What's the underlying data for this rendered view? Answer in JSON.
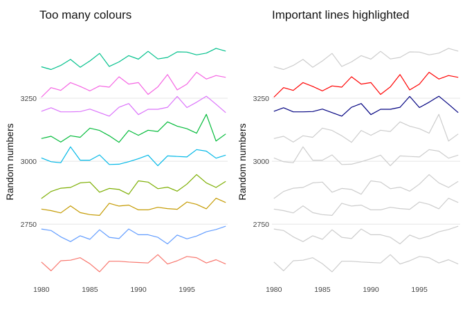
{
  "chart_data": [
    {
      "type": "line",
      "title": "Too many colours",
      "xlabel": "",
      "ylabel": "Random numbers",
      "x": [
        1980,
        1981,
        1982,
        1983,
        1984,
        1985,
        1986,
        1987,
        1988,
        1989,
        1990,
        1991,
        1992,
        1993,
        1994,
        1995,
        1996,
        1997,
        1998,
        1999
      ],
      "x_ticks": [
        1980,
        1985,
        1990,
        1995
      ],
      "y_ticks": [
        2750,
        3000,
        3250
      ],
      "xlim": [
        1979.8,
        1999.2
      ],
      "ylim": [
        2550,
        3530
      ],
      "grid": true,
      "legend": "none",
      "series": [
        {
          "color": "#F8766D",
          "values": [
            2600,
            2565,
            2605,
            2607,
            2617,
            2593,
            2561,
            2603,
            2603,
            2600,
            2598,
            2596,
            2629,
            2592,
            2605,
            2622,
            2617,
            2596,
            2609,
            2592
          ]
        },
        {
          "color": "#619CFF",
          "values": [
            2731,
            2725,
            2700,
            2681,
            2704,
            2690,
            2728,
            2698,
            2693,
            2731,
            2708,
            2708,
            2698,
            2672,
            2707,
            2692,
            2703,
            2720,
            2729,
            2742
          ]
        },
        {
          "color": "#C49A00",
          "values": [
            2810,
            2804,
            2795,
            2823,
            2796,
            2788,
            2785,
            2833,
            2822,
            2826,
            2807,
            2807,
            2817,
            2812,
            2809,
            2838,
            2829,
            2811,
            2853,
            2836
          ]
        },
        {
          "color": "#7CAE00",
          "values": [
            2852,
            2880,
            2893,
            2896,
            2914,
            2917,
            2877,
            2892,
            2888,
            2869,
            2922,
            2917,
            2891,
            2897,
            2881,
            2909,
            2947,
            2914,
            2896,
            2920
          ]
        },
        {
          "color": "#00B8E7",
          "values": [
            3013,
            2998,
            2994,
            3057,
            3004,
            3004,
            3025,
            2987,
            2988,
            2998,
            3010,
            3024,
            2982,
            3021,
            3019,
            3017,
            3046,
            3040,
            3012,
            3024
          ]
        },
        {
          "color": "#00BA38",
          "values": [
            3090,
            3099,
            3076,
            3101,
            3095,
            3131,
            3122,
            3101,
            3075,
            3122,
            3103,
            3123,
            3118,
            3156,
            3139,
            3129,
            3111,
            3186,
            3080,
            3108
          ]
        },
        {
          "color": "#DB72FB",
          "values": [
            3198,
            3212,
            3196,
            3196,
            3197,
            3207,
            3193,
            3179,
            3214,
            3229,
            3185,
            3206,
            3206,
            3214,
            3257,
            3213,
            3234,
            3258,
            3226,
            3193
          ]
        },
        {
          "color": "#F564E3",
          "values": [
            3254,
            3292,
            3281,
            3312,
            3297,
            3279,
            3299,
            3294,
            3335,
            3306,
            3312,
            3265,
            3295,
            3344,
            3283,
            3306,
            3353,
            3326,
            3340,
            3333
          ]
        },
        {
          "color": "#00C08B",
          "values": [
            3375,
            3364,
            3380,
            3404,
            3373,
            3398,
            3428,
            3376,
            3394,
            3419,
            3405,
            3436,
            3406,
            3412,
            3434,
            3433,
            3422,
            3429,
            3448,
            3437
          ]
        }
      ]
    },
    {
      "type": "line",
      "title": "Important lines highlighted",
      "xlabel": "",
      "ylabel": "Random numbers",
      "x": [
        1980,
        1981,
        1982,
        1983,
        1984,
        1985,
        1986,
        1987,
        1988,
        1989,
        1990,
        1991,
        1992,
        1993,
        1994,
        1995,
        1996,
        1997,
        1998,
        1999
      ],
      "x_ticks": [
        1980,
        1985,
        1990,
        1995
      ],
      "y_ticks": [
        2750,
        3000,
        3250
      ],
      "xlim": [
        1979.8,
        1999.2
      ],
      "ylim": [
        2550,
        3530
      ],
      "grid": true,
      "legend": "none",
      "series": [
        {
          "color": "#cccccc",
          "values": [
            2600,
            2565,
            2605,
            2607,
            2617,
            2593,
            2561,
            2603,
            2603,
            2600,
            2598,
            2596,
            2629,
            2592,
            2605,
            2622,
            2617,
            2596,
            2609,
            2592
          ]
        },
        {
          "color": "#cccccc",
          "values": [
            2731,
            2725,
            2700,
            2681,
            2704,
            2690,
            2728,
            2698,
            2693,
            2731,
            2708,
            2708,
            2698,
            2672,
            2707,
            2692,
            2703,
            2720,
            2729,
            2742
          ]
        },
        {
          "color": "#cccccc",
          "values": [
            2810,
            2804,
            2795,
            2823,
            2796,
            2788,
            2785,
            2833,
            2822,
            2826,
            2807,
            2807,
            2817,
            2812,
            2809,
            2838,
            2829,
            2811,
            2853,
            2836
          ]
        },
        {
          "color": "#cccccc",
          "values": [
            2852,
            2880,
            2893,
            2896,
            2914,
            2917,
            2877,
            2892,
            2888,
            2869,
            2922,
            2917,
            2891,
            2897,
            2881,
            2909,
            2947,
            2914,
            2896,
            2920
          ]
        },
        {
          "color": "#cccccc",
          "values": [
            3013,
            2998,
            2994,
            3057,
            3004,
            3004,
            3025,
            2987,
            2988,
            2998,
            3010,
            3024,
            2982,
            3021,
            3019,
            3017,
            3046,
            3040,
            3012,
            3024
          ]
        },
        {
          "color": "#cccccc",
          "values": [
            3090,
            3099,
            3076,
            3101,
            3095,
            3131,
            3122,
            3101,
            3075,
            3122,
            3103,
            3123,
            3118,
            3156,
            3139,
            3129,
            3111,
            3186,
            3080,
            3108
          ]
        },
        {
          "color": "#cccccc",
          "values": [
            3375,
            3364,
            3380,
            3404,
            3373,
            3398,
            3428,
            3376,
            3394,
            3419,
            3405,
            3436,
            3406,
            3412,
            3434,
            3433,
            3422,
            3429,
            3448,
            3437
          ]
        },
        {
          "color": "#000080",
          "values": [
            3198,
            3212,
            3196,
            3196,
            3197,
            3207,
            3193,
            3179,
            3214,
            3229,
            3185,
            3206,
            3206,
            3214,
            3257,
            3213,
            3234,
            3258,
            3226,
            3193
          ]
        },
        {
          "color": "#FF0000",
          "values": [
            3254,
            3292,
            3281,
            3312,
            3297,
            3279,
            3299,
            3294,
            3335,
            3306,
            3312,
            3265,
            3295,
            3344,
            3283,
            3306,
            3353,
            3326,
            3340,
            3333
          ]
        }
      ]
    }
  ]
}
